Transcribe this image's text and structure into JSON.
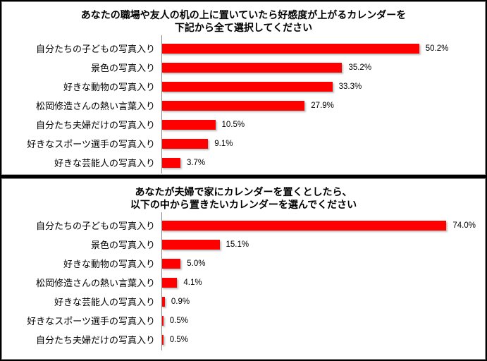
{
  "colors": {
    "bar": "#FF0000",
    "axis_line": "#8C8C8C",
    "panel_border": "#A6A6A6",
    "frame": "#000000",
    "text": "#000000"
  },
  "chart_data": [
    {
      "type": "bar",
      "orientation": "horizontal",
      "title": "あなたの職場や友人の机の上に置いていたら好感度が上がるカレンダーを 下記から全て選択してください",
      "title_lines": [
        "あなたの職場や友人の机の上に置いていたら好感度が上がるカレンダーを",
        "下記から全て選択してください"
      ],
      "categories": [
        "自分たちの子どもの写真入り",
        "景色の写真入り",
        "好きな動物の写真入り",
        "松岡修造さんの熱い言葉入り",
        "自分たち夫婦だけの写真入り",
        "好きなスポーツ選手の写真入り",
        "好きな芸能人の写真入り"
      ],
      "values": [
        50.2,
        35.2,
        33.3,
        27.9,
        10.5,
        9.1,
        3.7
      ],
      "value_labels": [
        "50.2%",
        "35.2%",
        "33.3%",
        "27.9%",
        "10.5%",
        "9.1%",
        "3.7%"
      ],
      "unit": "%",
      "xlabel": "",
      "ylabel": "",
      "xlim": [
        0,
        63
      ],
      "grid": false,
      "legend": false,
      "bar_color": "#FF0000"
    },
    {
      "type": "bar",
      "orientation": "horizontal",
      "title": "あなたが夫婦で家にカレンダーを置くとしたら、 以下の中から置きたいカレンダーを選んでください",
      "title_lines": [
        "あなたが夫婦で家にカレンダーを置くとしたら、",
        "以下の中から置きたいカレンダーを選んでください"
      ],
      "categories": [
        "自分たちの子どもの写真入り",
        "景色の写真入り",
        "好きな動物の写真入り",
        "松岡修造さんの熱い言葉入り",
        "好きな芸能人の写真入り",
        "好きなスポーツ選手の写真入り",
        "自分たち夫婦だけの写真入り"
      ],
      "values": [
        74.0,
        15.1,
        5.0,
        4.1,
        0.9,
        0.5,
        0.5
      ],
      "value_labels": [
        "74.0%",
        "15.1%",
        "5.0%",
        "4.1%",
        "0.9%",
        "0.5%",
        "0.5%"
      ],
      "unit": "%",
      "xlabel": "",
      "ylabel": "",
      "xlim": [
        0,
        84
      ],
      "grid": false,
      "legend": false,
      "bar_color": "#FF0000"
    }
  ]
}
